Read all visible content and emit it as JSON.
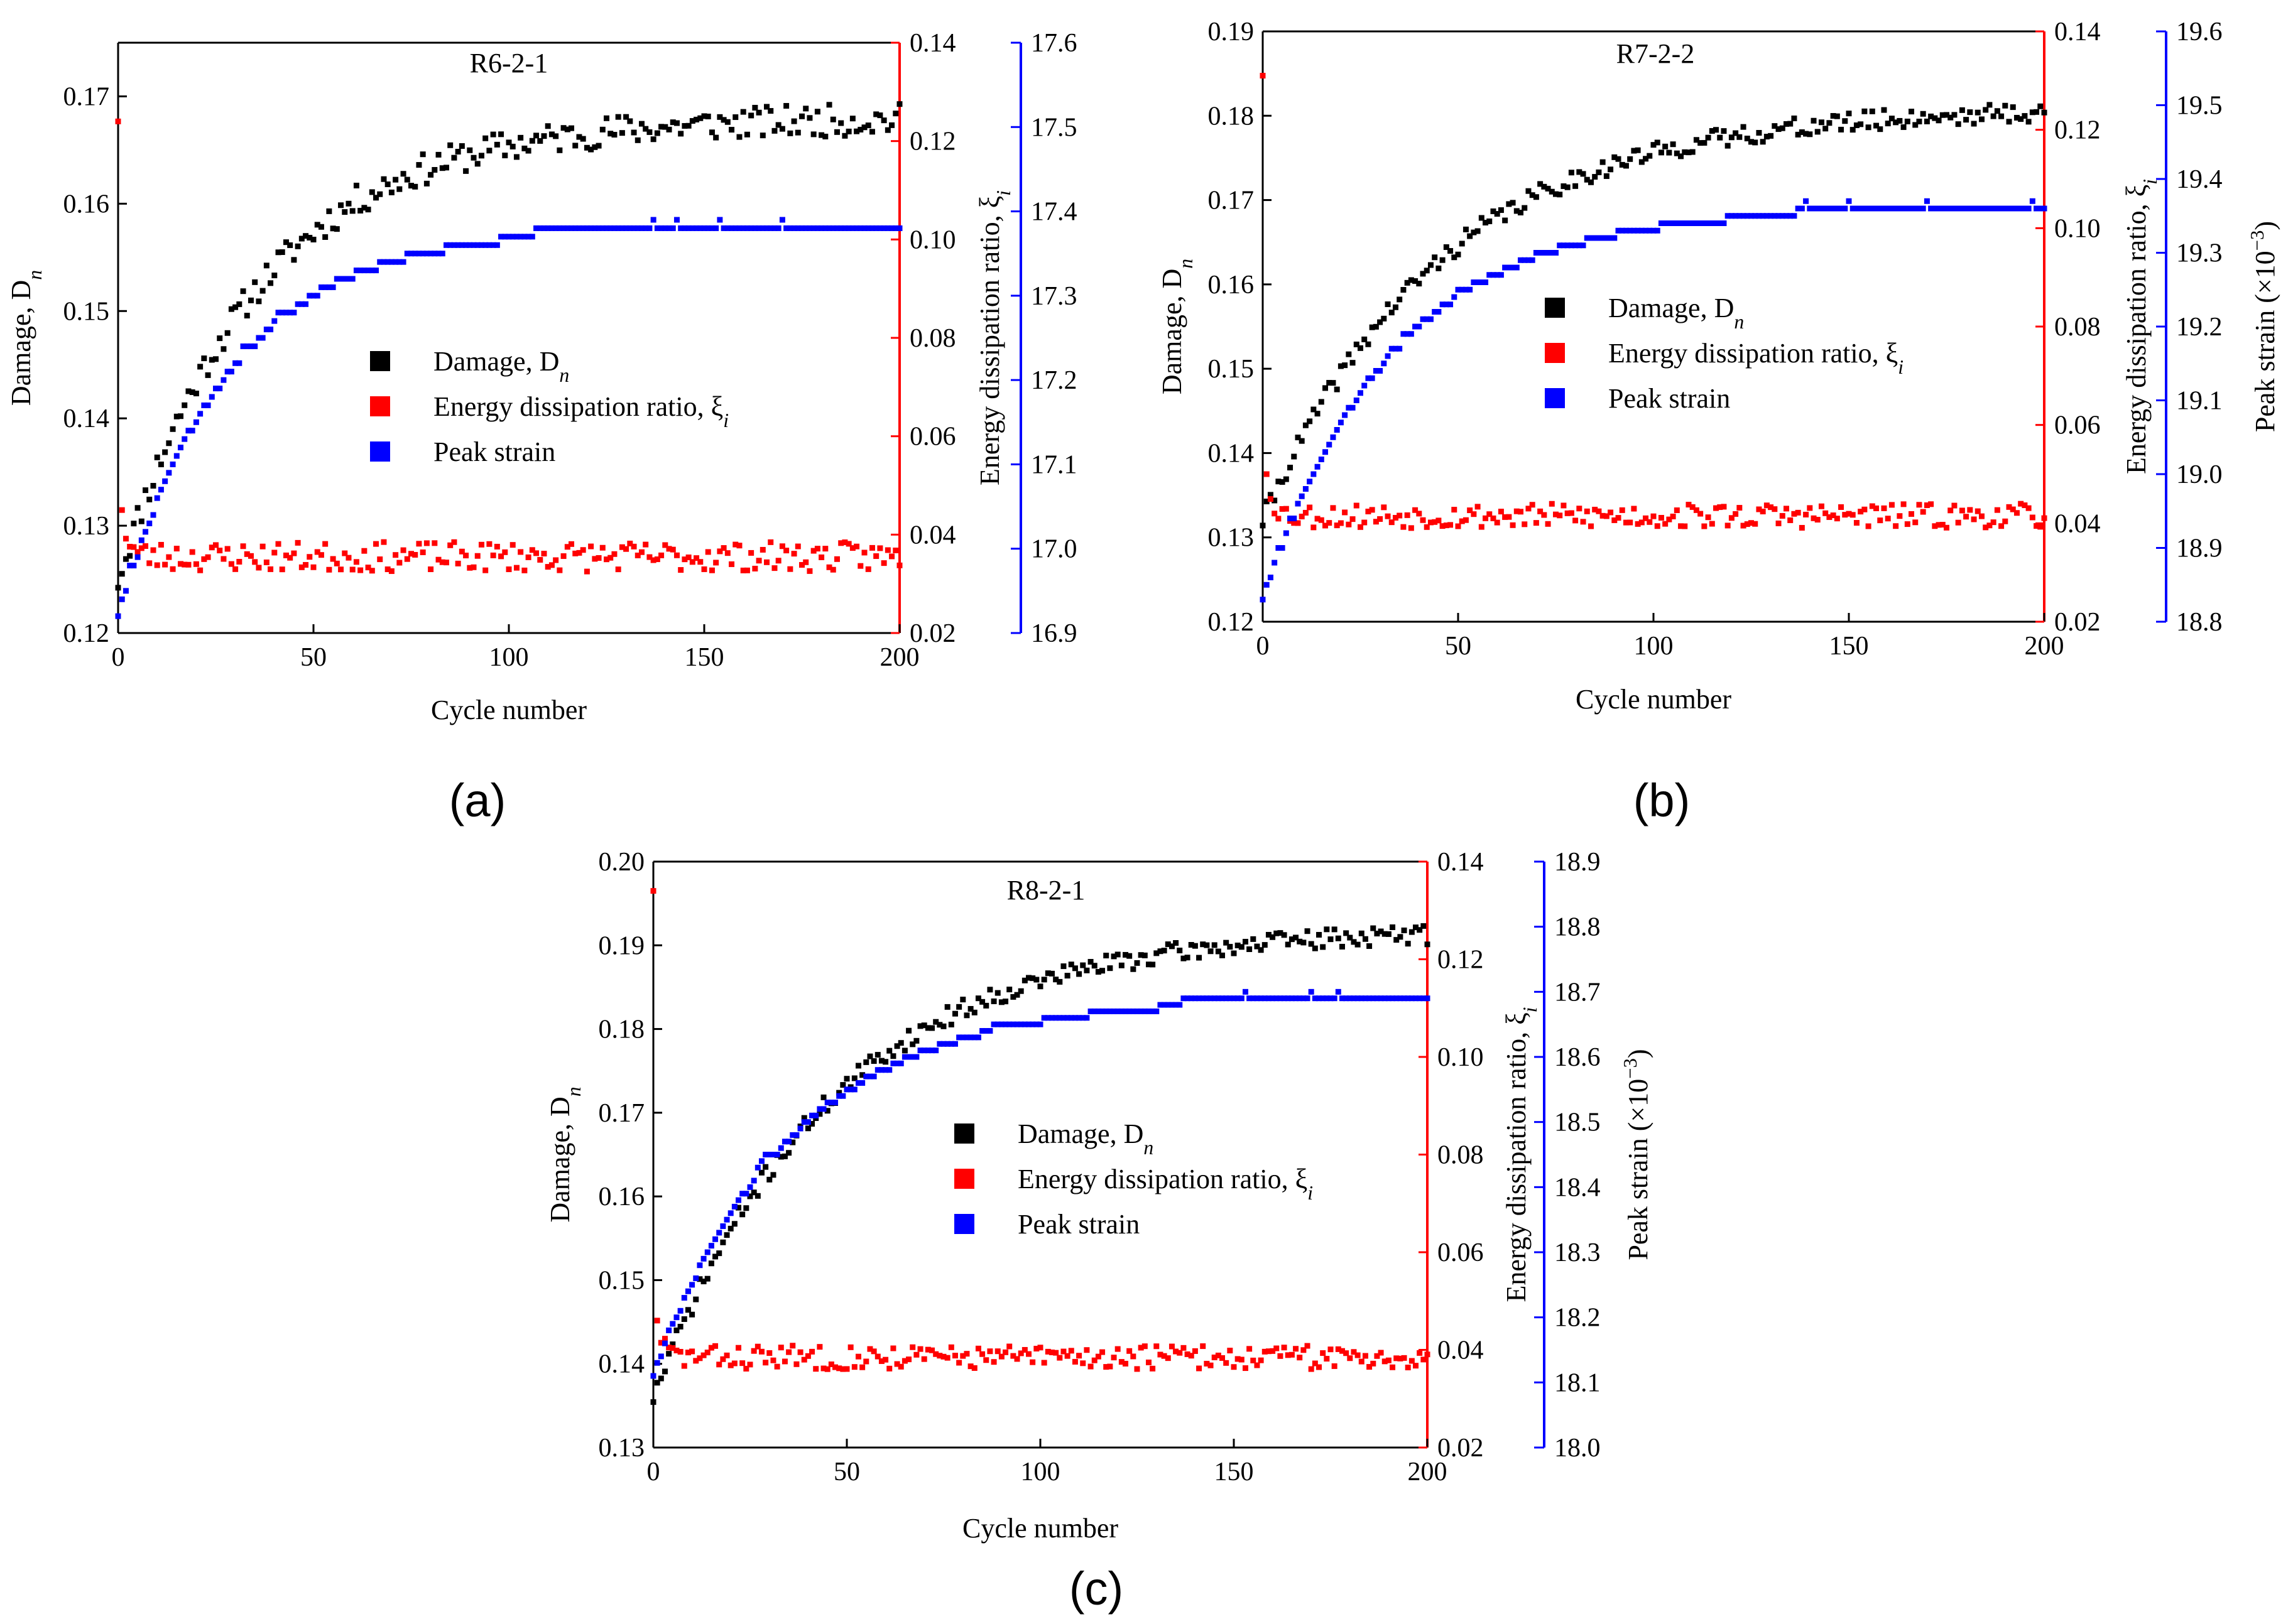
{
  "figure": {
    "panels": [
      {
        "label": "(a)"
      },
      {
        "label": "(b)"
      },
      {
        "label": "(c)"
      }
    ]
  },
  "colors": {
    "damage": "#000000",
    "energy": "#ff0000",
    "strain": "#0000ff",
    "axis": "#000000"
  },
  "chart_data": [
    {
      "type": "scatter",
      "title": "R6-2-1",
      "xlabel": "Cycle number",
      "ylabel_left": "Damage, D",
      "ylabel_left_sub": "n",
      "ylabel_right1": "Energy dissipation ratio, ξ",
      "ylabel_right1_sub": "i",
      "ylabel_right2": "",
      "ylabel_right2_sup": "",
      "ylabel_right2_tail": "",
      "xlim": [
        0,
        200
      ],
      "xticks": [
        "0",
        "50",
        "100",
        "150",
        "200"
      ],
      "ylim_left": [
        0.12,
        0.175
      ],
      "yticks_left": [
        "0.12",
        "0.13",
        "0.14",
        "0.15",
        "0.16",
        "0.17"
      ],
      "ylim_right1": [
        0.02,
        0.14
      ],
      "yticks_right1": [
        "0.02",
        "0.04",
        "0.06",
        "0.08",
        "0.10",
        "0.12",
        "0.14"
      ],
      "ylim_right2": [
        16.9,
        17.6
      ],
      "yticks_right2": [
        "16.9",
        "17.0",
        "17.1",
        "17.2",
        "17.3",
        "17.4",
        "17.5",
        "17.6"
      ],
      "legend": [
        {
          "label": "Damage, D",
          "sub": "n"
        },
        {
          "label": "Energy dissipation ratio, ξ",
          "sub": "i"
        },
        {
          "label": "Peak strain",
          "sub": ""
        }
      ],
      "series": [
        {
          "name": "Damage, Dn",
          "axis": "left",
          "model": {
            "start": 0.125,
            "asym": 0.168,
            "rate": 0.028,
            "noise": 0.0015,
            "seed": 11
          }
        },
        {
          "name": "Energy dissipation ratio, ξi",
          "axis": "right1",
          "model": {
            "first": 0.124,
            "second": 0.045,
            "base": 0.0355,
            "decay": 0.6,
            "noise": 0.003,
            "seed": 23
          }
        },
        {
          "name": "Peak strain",
          "axis": "right2",
          "model": {
            "start": 16.92,
            "asym": 17.38,
            "rate": 0.035,
            "step": 0.01,
            "seed": 37
          }
        }
      ]
    },
    {
      "type": "scatter",
      "title": "R7-2-2",
      "xlabel": "Cycle number",
      "ylabel_left": "Damage, D",
      "ylabel_left_sub": "n",
      "ylabel_right1": "Energy dissipation ratio, ξ",
      "ylabel_right1_sub": "i",
      "ylabel_right2": "Peak strain (×10",
      "ylabel_right2_sup": "−3",
      "ylabel_right2_tail": ")",
      "xlim": [
        0,
        200
      ],
      "xticks": [
        "0",
        "50",
        "100",
        "150",
        "200"
      ],
      "ylim_left": [
        0.12,
        0.19
      ],
      "yticks_left": [
        "0.12",
        "0.13",
        "0.14",
        "0.15",
        "0.16",
        "0.17",
        "0.18",
        "0.19"
      ],
      "ylim_right1": [
        0.02,
        0.14
      ],
      "yticks_right1": [
        "0.02",
        "0.04",
        "0.06",
        "0.08",
        "0.10",
        "0.12",
        "0.14"
      ],
      "ylim_right2": [
        18.8,
        19.6
      ],
      "yticks_right2": [
        "18.8",
        "18.9",
        "19.0",
        "19.1",
        "19.2",
        "19.3",
        "19.4",
        "19.5",
        "19.6"
      ],
      "legend": [
        {
          "label": "Damage, D",
          "sub": "n"
        },
        {
          "label": "Energy dissipation ratio, ξ",
          "sub": "i"
        },
        {
          "label": "Peak strain",
          "sub": ""
        }
      ],
      "series": [
        {
          "name": "Damage, Dn",
          "axis": "left",
          "model": {
            "start": 0.132,
            "asym": 0.181,
            "rate": 0.022,
            "noise": 0.0012,
            "seed": 41
          }
        },
        {
          "name": "Energy dissipation ratio, ξi",
          "axis": "right1",
          "model": {
            "first": 0.131,
            "second": 0.05,
            "base": 0.0415,
            "decay": 0.6,
            "noise": 0.0025,
            "seed": 53
          }
        },
        {
          "name": "Peak strain",
          "axis": "right2",
          "model": {
            "start": 18.83,
            "asym": 19.36,
            "rate": 0.03,
            "step": 0.01,
            "seed": 67
          }
        }
      ]
    },
    {
      "type": "scatter",
      "title": "R8-2-1",
      "xlabel": "Cycle number",
      "ylabel_left": "Damage, D",
      "ylabel_left_sub": "n",
      "ylabel_right1": "Energy dissipation ratio, ξ",
      "ylabel_right1_sub": "i",
      "ylabel_right2": "Peak strain (×10",
      "ylabel_right2_sup": "−3",
      "ylabel_right2_tail": ")",
      "xlim": [
        0,
        200
      ],
      "xticks": [
        "0",
        "50",
        "100",
        "150",
        "200"
      ],
      "ylim_left": [
        0.13,
        0.2
      ],
      "yticks_left": [
        "0.13",
        "0.14",
        "0.15",
        "0.16",
        "0.17",
        "0.18",
        "0.19",
        "0.20"
      ],
      "ylim_right1": [
        0.02,
        0.14
      ],
      "yticks_right1": [
        "0.02",
        "0.04",
        "0.06",
        "0.08",
        "0.10",
        "0.12",
        "0.14"
      ],
      "ylim_right2": [
        18.0,
        18.9
      ],
      "yticks_right2": [
        "18.0",
        "18.1",
        "18.2",
        "18.3",
        "18.4",
        "18.5",
        "18.6",
        "18.7",
        "18.8",
        "18.9"
      ],
      "legend": [
        {
          "label": "Damage, D",
          "sub": "n"
        },
        {
          "label": "Energy dissipation ratio, ξ",
          "sub": "i"
        },
        {
          "label": "Peak strain",
          "sub": ""
        }
      ],
      "series": [
        {
          "name": "Damage, Dn",
          "axis": "left",
          "model": {
            "start": 0.136,
            "asym": 0.192,
            "rate": 0.022,
            "noise": 0.0012,
            "seed": 71
          }
        },
        {
          "name": "Energy dissipation ratio, ξi",
          "axis": "right1",
          "model": {
            "first": 0.134,
            "second": 0.046,
            "base": 0.0385,
            "decay": 0.6,
            "noise": 0.0025,
            "seed": 83
          }
        },
        {
          "name": "Peak strain",
          "axis": "right2",
          "model": {
            "start": 18.11,
            "asym": 18.69,
            "rate": 0.028,
            "step": 0.01,
            "seed": 97
          }
        }
      ]
    }
  ]
}
